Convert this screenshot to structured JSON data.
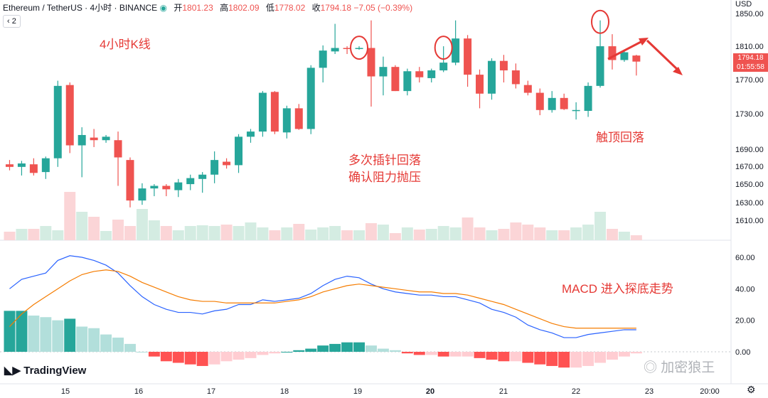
{
  "header": {
    "symbol": "Ethereum / TetherUS · 4小时 · BINANCE",
    "open_label": "开",
    "open": "1801.23",
    "high_label": "高",
    "high": "1802.09",
    "low_label": "低",
    "low": "1778.02",
    "close_label": "收",
    "close": "1794.18",
    "change": "−7.05 (−0.39%)"
  },
  "indicator_toggle": "2",
  "currency": "USD",
  "price_box": {
    "price": "1794.18",
    "countdown": "01:55:58"
  },
  "annotations": {
    "title": "4小时K线",
    "wicks_line1": "多次插针回落",
    "wicks_line2": "确认阻力抛压",
    "top": "触顶回落",
    "macd": "MACD 进入探底走势"
  },
  "logo": "TradingView",
  "watermark": "加密狼王",
  "colors": {
    "up": "#26a69a",
    "down": "#ef5350",
    "macd_line": "#2962ff",
    "signal_line": "#f57c00",
    "annotation": "#e53935"
  },
  "chart_data": [
    {
      "type": "candlestick",
      "ylabels": [
        "1850.00",
        "1810.00",
        "1770.00",
        "1730.00",
        "1690.00",
        "1670.00",
        "1650.00",
        "1630.00",
        "1610.00"
      ],
      "xlabels": [
        "15",
        "16",
        "17",
        "18",
        "19",
        "20",
        "21",
        "22",
        "23",
        "20:00"
      ],
      "candles": [
        {
          "o": 1675,
          "h": 1680,
          "l": 1668,
          "c": 1672
        },
        {
          "o": 1672,
          "h": 1679,
          "l": 1662,
          "c": 1676
        },
        {
          "o": 1675,
          "h": 1682,
          "l": 1662,
          "c": 1665
        },
        {
          "o": 1666,
          "h": 1684,
          "l": 1658,
          "c": 1682
        },
        {
          "o": 1682,
          "h": 1772,
          "l": 1672,
          "c": 1766
        },
        {
          "o": 1767,
          "h": 1770,
          "l": 1688,
          "c": 1697
        },
        {
          "o": 1697,
          "h": 1718,
          "l": 1660,
          "c": 1709
        },
        {
          "o": 1706,
          "h": 1716,
          "l": 1695,
          "c": 1703
        },
        {
          "o": 1703,
          "h": 1709,
          "l": 1700,
          "c": 1707
        },
        {
          "o": 1703,
          "h": 1713,
          "l": 1650,
          "c": 1683
        },
        {
          "o": 1680,
          "h": 1683,
          "l": 1625,
          "c": 1633
        },
        {
          "o": 1633,
          "h": 1653,
          "l": 1628,
          "c": 1647
        },
        {
          "o": 1647,
          "h": 1652,
          "l": 1638,
          "c": 1650
        },
        {
          "o": 1650,
          "h": 1652,
          "l": 1638,
          "c": 1646
        },
        {
          "o": 1645,
          "h": 1658,
          "l": 1637,
          "c": 1654
        },
        {
          "o": 1652,
          "h": 1663,
          "l": 1645,
          "c": 1659
        },
        {
          "o": 1658,
          "h": 1666,
          "l": 1642,
          "c": 1663
        },
        {
          "o": 1663,
          "h": 1690,
          "l": 1653,
          "c": 1680
        },
        {
          "o": 1678,
          "h": 1682,
          "l": 1670,
          "c": 1674
        },
        {
          "o": 1674,
          "h": 1710,
          "l": 1665,
          "c": 1707
        },
        {
          "o": 1707,
          "h": 1716,
          "l": 1700,
          "c": 1713
        },
        {
          "o": 1713,
          "h": 1760,
          "l": 1707,
          "c": 1758
        },
        {
          "o": 1759,
          "h": 1760,
          "l": 1710,
          "c": 1713
        },
        {
          "o": 1712,
          "h": 1743,
          "l": 1705,
          "c": 1740
        },
        {
          "o": 1740,
          "h": 1745,
          "l": 1715,
          "c": 1716
        },
        {
          "o": 1716,
          "h": 1790,
          "l": 1710,
          "c": 1787
        },
        {
          "o": 1787,
          "h": 1813,
          "l": 1770,
          "c": 1807
        },
        {
          "o": 1806,
          "h": 1838,
          "l": 1803,
          "c": 1810
        },
        {
          "o": 1810,
          "h": 1812,
          "l": 1803,
          "c": 1809
        },
        {
          "o": 1810,
          "h": 1812,
          "l": 1808,
          "c": 1810
        },
        {
          "o": 1810,
          "h": 1842,
          "l": 1742,
          "c": 1777
        },
        {
          "o": 1777,
          "h": 1800,
          "l": 1755,
          "c": 1788
        },
        {
          "o": 1788,
          "h": 1790,
          "l": 1760,
          "c": 1760
        },
        {
          "o": 1760,
          "h": 1786,
          "l": 1755,
          "c": 1783
        },
        {
          "o": 1783,
          "h": 1788,
          "l": 1770,
          "c": 1776
        },
        {
          "o": 1775,
          "h": 1786,
          "l": 1770,
          "c": 1784
        },
        {
          "o": 1784,
          "h": 1812,
          "l": 1782,
          "c": 1793
        },
        {
          "o": 1793,
          "h": 1842,
          "l": 1790,
          "c": 1821
        },
        {
          "o": 1821,
          "h": 1825,
          "l": 1765,
          "c": 1779
        },
        {
          "o": 1779,
          "h": 1785,
          "l": 1740,
          "c": 1757
        },
        {
          "o": 1757,
          "h": 1798,
          "l": 1750,
          "c": 1795
        },
        {
          "o": 1795,
          "h": 1802,
          "l": 1770,
          "c": 1784
        },
        {
          "o": 1784,
          "h": 1792,
          "l": 1763,
          "c": 1768
        },
        {
          "o": 1767,
          "h": 1772,
          "l": 1755,
          "c": 1758
        },
        {
          "o": 1758,
          "h": 1763,
          "l": 1732,
          "c": 1738
        },
        {
          "o": 1738,
          "h": 1760,
          "l": 1735,
          "c": 1752
        },
        {
          "o": 1752,
          "h": 1757,
          "l": 1738,
          "c": 1739
        },
        {
          "o": 1738,
          "h": 1747,
          "l": 1727,
          "c": 1738
        },
        {
          "o": 1737,
          "h": 1770,
          "l": 1730,
          "c": 1766
        },
        {
          "o": 1766,
          "h": 1842,
          "l": 1764,
          "c": 1812
        },
        {
          "o": 1812,
          "h": 1826,
          "l": 1785,
          "c": 1796
        },
        {
          "o": 1796,
          "h": 1808,
          "l": 1794,
          "c": 1805
        },
        {
          "o": 1801.23,
          "h": 1802.09,
          "l": 1778.02,
          "c": 1794.18
        }
      ],
      "volume": [
        12,
        16,
        16,
        20,
        14,
        68,
        40,
        33,
        13,
        29,
        20,
        44,
        28,
        20,
        14,
        20,
        21,
        20,
        22,
        20,
        25,
        18,
        14,
        18,
        23,
        15,
        18,
        20,
        14,
        14,
        24,
        22,
        10,
        18,
        15,
        16,
        20,
        18,
        32,
        18,
        14,
        16,
        25,
        22,
        18,
        14,
        14,
        18,
        22,
        40,
        16,
        12,
        7
      ]
    },
    {
      "type": "macd",
      "ylabels": [
        "60.00",
        "40.00",
        "20.00",
        "0.00"
      ],
      "series": [
        {
          "values": [
            40,
            46,
            48,
            50,
            58,
            61,
            60,
            58,
            55,
            50,
            42,
            35,
            30,
            27,
            25,
            25,
            24,
            26,
            27,
            30,
            30,
            33,
            32,
            33,
            34,
            37,
            42,
            46,
            48,
            47,
            43,
            40,
            38,
            37,
            36,
            36,
            35,
            35,
            33,
            31,
            27,
            25,
            22,
            17,
            14,
            12,
            9,
            9,
            11,
            12,
            13,
            14,
            14
          ]
        },
        {
          "values": [
            16,
            24,
            30,
            35,
            40,
            45,
            49,
            51,
            52,
            51,
            48,
            44,
            41,
            38,
            35,
            33,
            32,
            32,
            31,
            31,
            31,
            31,
            31,
            32,
            33,
            35,
            38,
            40,
            42,
            43,
            42,
            41,
            40,
            39,
            38,
            38,
            37,
            37,
            36,
            34,
            32,
            30,
            27,
            24,
            21,
            18,
            16,
            15,
            15,
            15,
            15,
            15,
            15
          ]
        }
      ],
      "histogram": [
        26,
        26,
        23,
        22,
        20,
        21,
        16,
        15,
        11,
        9,
        5,
        0,
        -3,
        -6,
        -7,
        -8,
        -9,
        -8,
        -6,
        -5,
        -4,
        -2,
        -1,
        0,
        1,
        2,
        4,
        5,
        6,
        6,
        4,
        2,
        1,
        -1,
        -2,
        -2,
        -3,
        -3,
        -3,
        -4,
        -5,
        -6,
        -6,
        -7,
        -8,
        -9,
        -10,
        -10,
        -9,
        -7,
        -5,
        -3,
        -1
      ]
    }
  ]
}
